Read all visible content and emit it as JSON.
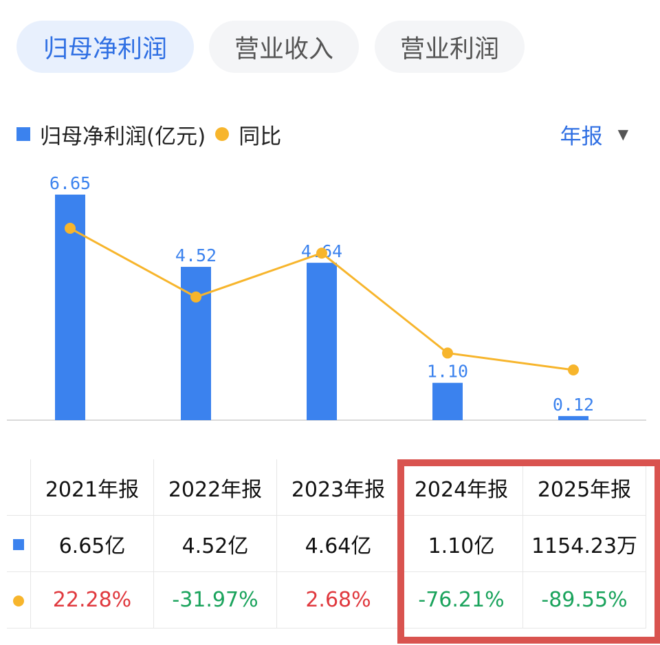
{
  "tabs": [
    {
      "label": "归母净利润",
      "active": true
    },
    {
      "label": "营业收入",
      "active": false
    },
    {
      "label": "营业利润",
      "active": false
    }
  ],
  "legend": {
    "bar_label": "归母净利润(亿元)",
    "line_label": "同比"
  },
  "period_selector": {
    "label": "年报"
  },
  "colors": {
    "bar": "#3b82ee",
    "line": "#f7b52c",
    "positive": "#e0393e",
    "negative": "#1aa35c",
    "highlight": "#d9534f"
  },
  "chart_data": {
    "type": "bar",
    "categories": [
      "2021年报",
      "2022年报",
      "2023年报",
      "2024年报",
      "2025年报"
    ],
    "series": [
      {
        "name": "归母净利润(亿元)",
        "type": "bar",
        "values": [
          6.65,
          4.52,
          4.64,
          1.1,
          0.12
        ],
        "labels": [
          "6.65",
          "4.52",
          "4.64",
          "1.10",
          "0.12"
        ]
      },
      {
        "name": "同比",
        "type": "line",
        "values": [
          22.28,
          -31.97,
          2.68,
          -76.21,
          -89.55
        ],
        "unit": "%"
      }
    ],
    "legend": "top-left"
  },
  "table": {
    "headers": [
      "2021年报",
      "2022年报",
      "2023年报",
      "2024年报",
      "2025年报"
    ],
    "profit_row": [
      "6.65亿",
      "4.52亿",
      "4.64亿",
      "1.10亿",
      "1154.23万"
    ],
    "yoy_row": [
      "22.28%",
      "-31.97%",
      "2.68%",
      "-76.21%",
      "-89.55%"
    ]
  }
}
